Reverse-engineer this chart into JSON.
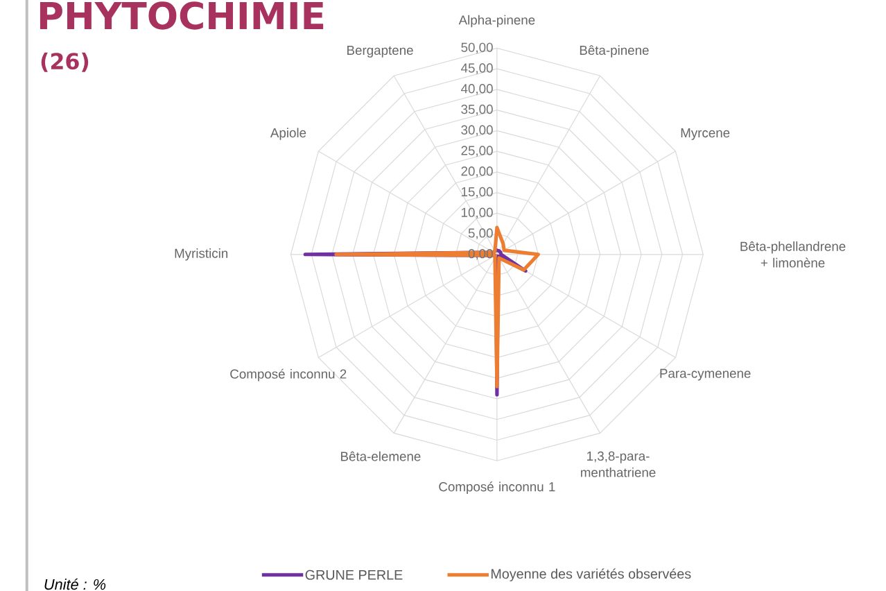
{
  "chart_data": {
    "type": "radar",
    "title": "PHYTOCHIMIE",
    "subtitle": "(26)",
    "categories": [
      "Alpha-pinene",
      "Bêta-pinene",
      "Myrcene",
      "Bêta-phellandrene + limonène",
      "Para-cymenene",
      "1,3,8-para-menthatriene",
      "Composé inconnu 1",
      "Bêta-elemene",
      "Composé inconnu 2",
      "Myristicin",
      "Apiole",
      "Bergaptene"
    ],
    "series": [
      {
        "name": "GRUNE PERLE",
        "color": "#7030a0",
        "values": [
          1,
          1,
          1,
          1,
          8,
          0.5,
          34,
          0.5,
          0.5,
          46.5,
          1,
          1
        ]
      },
      {
        "name": "Moyenne des variétés observées",
        "color": "#ed7d31",
        "values": [
          6.5,
          3,
          2,
          10,
          7.5,
          1,
          32,
          1,
          0.5,
          39,
          1,
          1
        ]
      }
    ],
    "ylim": [
      0,
      50
    ],
    "yticks": [
      {
        "value": 0,
        "label": "0,00"
      },
      {
        "value": 5,
        "label": "5,00"
      },
      {
        "value": 10,
        "label": "10,00"
      },
      {
        "value": 15,
        "label": "15,00"
      },
      {
        "value": 20,
        "label": "20,00"
      },
      {
        "value": 25,
        "label": "25,00"
      },
      {
        "value": 30,
        "label": "30,00"
      },
      {
        "value": 35,
        "label": "35,00"
      },
      {
        "value": 40,
        "label": "40,00"
      },
      {
        "value": 45,
        "label": "45,00"
      },
      {
        "value": 50,
        "label": "50,00"
      }
    ],
    "grid": true,
    "legend": "bottom",
    "annotations": [
      "*Unité : %*"
    ]
  }
}
